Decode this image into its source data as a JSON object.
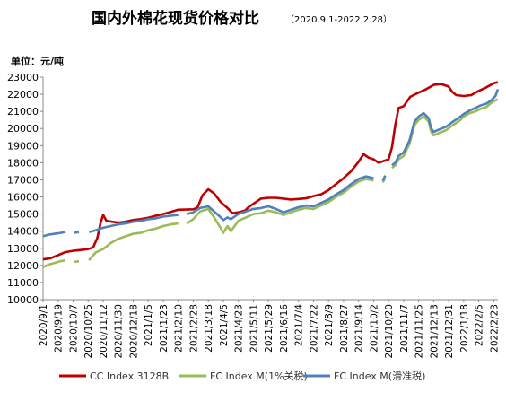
{
  "chart_data": {
    "type": "line",
    "title": "国内外棉花现货价格对比",
    "subtitle": "（2020.9.1-2022.2.28）",
    "ylabel": "单位：元/吨",
    "ylim": [
      10000,
      23000
    ],
    "yticks": [
      10000,
      11000,
      12000,
      13000,
      14000,
      15000,
      16000,
      17000,
      18000,
      19000,
      20000,
      21000,
      22000,
      23000
    ],
    "xticks": [
      "2020/9/1",
      "2020/9/19",
      "2020/10/7",
      "2020/10/25",
      "2020/11/12",
      "2020/11/30",
      "2020/12/18",
      "2021/1/5",
      "2021/1/23",
      "2021/2/10",
      "2021/2/28",
      "2021/3/18",
      "2021/4/5",
      "2021/4/23",
      "2021/5/11",
      "2021/5/29",
      "2021/6/16",
      "2021/7/4",
      "2021/7/22",
      "2021/8/9",
      "2021/8/27",
      "2021/9/14",
      "2021/10/2",
      "2021/10/20",
      "2021/11/7",
      "2021/11/25",
      "2021/12/13",
      "2021/12/31",
      "2022/1/18",
      "2022/2/5",
      "2022/2/23"
    ],
    "grid": false,
    "legend_position": "bottom",
    "series": [
      {
        "name": "CC Index 3128B",
        "color": "#c00000",
        "points": [
          [
            "2020/9/1",
            12350
          ],
          [
            "2020/9/10",
            12420
          ],
          [
            "2020/9/19",
            12600
          ],
          [
            "2020/9/28",
            12780
          ],
          [
            "2020/10/7",
            12850
          ],
          [
            "2020/10/16",
            12900
          ],
          [
            "2020/10/25",
            12950
          ],
          [
            "2020/10/31",
            13050
          ],
          [
            "2020/11/5",
            13600
          ],
          [
            "2020/11/9",
            14500
          ],
          [
            "2020/11/12",
            14950
          ],
          [
            "2020/11/16",
            14600
          ],
          [
            "2020/11/30",
            14500
          ],
          [
            "2020/12/9",
            14550
          ],
          [
            "2020/12/18",
            14650
          ],
          [
            "2020/12/27",
            14700
          ],
          [
            "2021/1/5",
            14780
          ],
          [
            "2021/1/14",
            14900
          ],
          [
            "2021/1/23",
            15000
          ],
          [
            "2021/2/1",
            15120
          ],
          [
            "2021/2/10",
            15250
          ],
          [
            "2021/2/28",
            15280
          ],
          [
            "2021/3/5",
            15380
          ],
          [
            "2021/3/11",
            16100
          ],
          [
            "2021/3/18",
            16450
          ],
          [
            "2021/3/25",
            16200
          ],
          [
            "2021/4/2",
            15700
          ],
          [
            "2021/4/10",
            15350
          ],
          [
            "2021/4/16",
            15050
          ],
          [
            "2021/4/23",
            15100
          ],
          [
            "2021/5/1",
            15200
          ],
          [
            "2021/5/5",
            15400
          ],
          [
            "2021/5/11",
            15600
          ],
          [
            "2021/5/20",
            15900
          ],
          [
            "2021/5/29",
            15950
          ],
          [
            "2021/6/7",
            15950
          ],
          [
            "2021/6/16",
            15900
          ],
          [
            "2021/6/25",
            15850
          ],
          [
            "2021/7/4",
            15880
          ],
          [
            "2021/7/13",
            15920
          ],
          [
            "2021/7/22",
            16050
          ],
          [
            "2021/7/31",
            16150
          ],
          [
            "2021/8/9",
            16400
          ],
          [
            "2021/8/18",
            16750
          ],
          [
            "2021/8/27",
            17100
          ],
          [
            "2021/9/5",
            17500
          ],
          [
            "2021/9/14",
            18050
          ],
          [
            "2021/9/20",
            18500
          ],
          [
            "2021/9/26",
            18300
          ],
          [
            "2021/10/2",
            18200
          ],
          [
            "2021/10/8",
            18000
          ],
          [
            "2021/10/14",
            18100
          ],
          [
            "2021/10/20",
            18200
          ],
          [
            "2021/10/24",
            18900
          ],
          [
            "2021/10/28",
            20200
          ],
          [
            "2021/11/1",
            21200
          ],
          [
            "2021/11/7",
            21300
          ],
          [
            "2021/11/15",
            21850
          ],
          [
            "2021/11/25",
            22100
          ],
          [
            "2021/12/4",
            22300
          ],
          [
            "2021/12/13",
            22550
          ],
          [
            "2021/12/22",
            22600
          ],
          [
            "2021/12/31",
            22450
          ],
          [
            "2022/1/4",
            22150
          ],
          [
            "2022/1/9",
            21950
          ],
          [
            "2022/1/18",
            21900
          ],
          [
            "2022/1/27",
            21950
          ],
          [
            "2022/2/5",
            22200
          ],
          [
            "2022/2/14",
            22400
          ],
          [
            "2022/2/23",
            22650
          ],
          [
            "2022/2/28",
            22700
          ]
        ]
      },
      {
        "name": "FC Index M(1%关税)",
        "color": "#9bbb59",
        "points": [
          [
            "2020/9/1",
            11900
          ],
          [
            "2020/9/8",
            12050
          ],
          [
            "2020/9/15",
            12150
          ],
          [
            "2020/9/22",
            12250
          ],
          [
            "2020/9/28",
            12300
          ],
          [
            "2020/10/4",
            null
          ],
          [
            "2020/10/8",
            12200
          ],
          [
            "2020/10/14",
            12250
          ],
          [
            "2020/10/20",
            null
          ],
          [
            "2020/10/26",
            12300
          ],
          [
            "2020/11/3",
            12750
          ],
          [
            "2020/11/12",
            12950
          ],
          [
            "2020/11/21",
            13300
          ],
          [
            "2020/11/30",
            13550
          ],
          [
            "2020/12/9",
            13700
          ],
          [
            "2020/12/18",
            13850
          ],
          [
            "2020/12/27",
            13900
          ],
          [
            "2021/1/5",
            14050
          ],
          [
            "2021/1/14",
            14150
          ],
          [
            "2021/1/23",
            14300
          ],
          [
            "2021/2/1",
            14400
          ],
          [
            "2021/2/10",
            14450
          ],
          [
            "2021/2/16",
            null
          ],
          [
            "2021/2/20",
            14450
          ],
          [
            "2021/2/28",
            14700
          ],
          [
            "2021/3/8",
            15150
          ],
          [
            "2021/3/18",
            15300
          ],
          [
            "2021/3/25",
            14800
          ],
          [
            "2021/4/1",
            14250
          ],
          [
            "2021/4/5",
            13900
          ],
          [
            "2021/4/10",
            14300
          ],
          [
            "2021/4/14",
            14000
          ],
          [
            "2021/4/23",
            14600
          ],
          [
            "2021/5/2",
            14800
          ],
          [
            "2021/5/11",
            15000
          ],
          [
            "2021/5/20",
            15050
          ],
          [
            "2021/5/29",
            15200
          ],
          [
            "2021/6/7",
            15100
          ],
          [
            "2021/6/16",
            14950
          ],
          [
            "2021/6/25",
            15100
          ],
          [
            "2021/7/4",
            15250
          ],
          [
            "2021/7/13",
            15350
          ],
          [
            "2021/7/22",
            15300
          ],
          [
            "2021/7/31",
            15500
          ],
          [
            "2021/8/9",
            15700
          ],
          [
            "2021/8/18",
            16000
          ],
          [
            "2021/8/27",
            16250
          ],
          [
            "2021/9/5",
            16600
          ],
          [
            "2021/9/14",
            16900
          ],
          [
            "2021/9/23",
            17050
          ],
          [
            "2021/10/2",
            16950
          ],
          [
            "2021/10/8",
            null
          ],
          [
            "2021/10/13",
            16850
          ],
          [
            "2021/10/16",
            17100
          ],
          [
            "2021/10/20",
            null
          ],
          [
            "2021/10/24",
            17700
          ],
          [
            "2021/10/28",
            17850
          ],
          [
            "2021/11/1",
            18200
          ],
          [
            "2021/11/7",
            18400
          ],
          [
            "2021/11/14",
            19100
          ],
          [
            "2021/11/20",
            20200
          ],
          [
            "2021/11/25",
            20500
          ],
          [
            "2021/12/1",
            20700
          ],
          [
            "2021/12/7",
            20400
          ],
          [
            "2021/12/10",
            19800
          ],
          [
            "2021/12/13",
            19600
          ],
          [
            "2021/12/20",
            19750
          ],
          [
            "2021/12/28",
            19900
          ],
          [
            "2022/1/5",
            20200
          ],
          [
            "2022/1/13",
            20450
          ],
          [
            "2022/1/18",
            20700
          ],
          [
            "2022/1/25",
            20900
          ],
          [
            "2022/2/1",
            21000
          ],
          [
            "2022/2/7",
            21150
          ],
          [
            "2022/2/14",
            21250
          ],
          [
            "2022/2/20",
            21500
          ],
          [
            "2022/2/25",
            21650
          ],
          [
            "2022/2/28",
            21700
          ]
        ]
      },
      {
        "name": "FC Index M(滑准税)",
        "color": "#4f81bd",
        "points": [
          [
            "2020/9/1",
            13700
          ],
          [
            "2020/9/8",
            13800
          ],
          [
            "2020/9/15",
            13850
          ],
          [
            "2020/9/22",
            13900
          ],
          [
            "2020/9/28",
            13950
          ],
          [
            "2020/10/4",
            null
          ],
          [
            "2020/10/8",
            13900
          ],
          [
            "2020/10/14",
            13950
          ],
          [
            "2020/10/20",
            null
          ],
          [
            "2020/10/26",
            13950
          ],
          [
            "2020/11/3",
            14050
          ],
          [
            "2020/11/12",
            14200
          ],
          [
            "2020/11/21",
            14300
          ],
          [
            "2020/11/30",
            14400
          ],
          [
            "2020/12/9",
            14450
          ],
          [
            "2020/12/18",
            14550
          ],
          [
            "2020/12/27",
            14600
          ],
          [
            "2021/1/5",
            14700
          ],
          [
            "2021/1/14",
            14750
          ],
          [
            "2021/1/23",
            14850
          ],
          [
            "2021/2/1",
            14900
          ],
          [
            "2021/2/10",
            14950
          ],
          [
            "2021/2/16",
            null
          ],
          [
            "2021/2/20",
            15000
          ],
          [
            "2021/2/28",
            15100
          ],
          [
            "2021/3/8",
            15350
          ],
          [
            "2021/3/18",
            15450
          ],
          [
            "2021/3/25",
            15150
          ],
          [
            "2021/4/1",
            14850
          ],
          [
            "2021/4/5",
            14650
          ],
          [
            "2021/4/10",
            14800
          ],
          [
            "2021/4/14",
            14700
          ],
          [
            "2021/4/23",
            15000
          ],
          [
            "2021/5/2",
            15150
          ],
          [
            "2021/5/11",
            15300
          ],
          [
            "2021/5/20",
            15350
          ],
          [
            "2021/5/29",
            15450
          ],
          [
            "2021/6/7",
            15300
          ],
          [
            "2021/6/16",
            15100
          ],
          [
            "2021/6/25",
            15250
          ],
          [
            "2021/7/4",
            15400
          ],
          [
            "2021/7/13",
            15500
          ],
          [
            "2021/7/22",
            15450
          ],
          [
            "2021/7/31",
            15650
          ],
          [
            "2021/8/9",
            15850
          ],
          [
            "2021/8/18",
            16150
          ],
          [
            "2021/8/27",
            16400
          ],
          [
            "2021/9/5",
            16750
          ],
          [
            "2021/9/14",
            17050
          ],
          [
            "2021/9/23",
            17200
          ],
          [
            "2021/10/2",
            17100
          ],
          [
            "2021/10/8",
            null
          ],
          [
            "2021/10/13",
            16950
          ],
          [
            "2021/10/16",
            17250
          ],
          [
            "2021/10/20",
            null
          ],
          [
            "2021/10/24",
            17850
          ],
          [
            "2021/10/28",
            18000
          ],
          [
            "2021/11/1",
            18400
          ],
          [
            "2021/11/7",
            18600
          ],
          [
            "2021/11/14",
            19300
          ],
          [
            "2021/11/20",
            20400
          ],
          [
            "2021/11/25",
            20700
          ],
          [
            "2021/12/1",
            20900
          ],
          [
            "2021/12/7",
            20600
          ],
          [
            "2021/12/10",
            20000
          ],
          [
            "2021/12/13",
            19800
          ],
          [
            "2021/12/20",
            19950
          ],
          [
            "2021/12/28",
            20100
          ],
          [
            "2022/1/5",
            20400
          ],
          [
            "2022/1/13",
            20650
          ],
          [
            "2022/1/18",
            20850
          ],
          [
            "2022/1/25",
            21050
          ],
          [
            "2022/2/1",
            21200
          ],
          [
            "2022/2/7",
            21350
          ],
          [
            "2022/2/14",
            21450
          ],
          [
            "2022/2/20",
            21650
          ],
          [
            "2022/2/25",
            21900
          ],
          [
            "2022/2/28",
            22300
          ]
        ]
      }
    ]
  }
}
